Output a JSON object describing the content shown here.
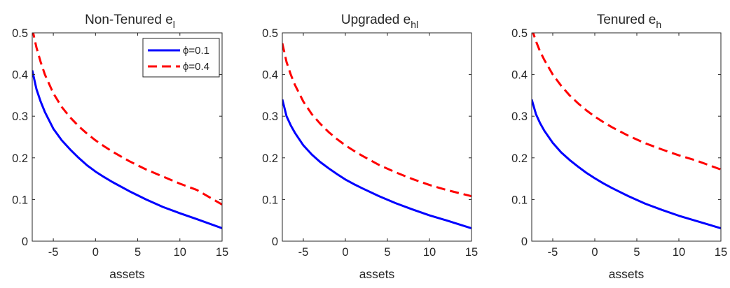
{
  "chart_data": [
    {
      "type": "line",
      "title": "Non-Tenured e",
      "title_sub": "l",
      "xlabel": "assets",
      "ylabel": "",
      "xlim": [
        -7.5,
        15
      ],
      "ylim": [
        0,
        0.5
      ],
      "xticks": [
        "-5",
        "0",
        "5",
        "10",
        "15"
      ],
      "yticks": [
        "0",
        "0.1",
        "0.2",
        "0.3",
        "0.4",
        "0.5"
      ],
      "grid": false,
      "legend": "top-right",
      "series": [
        {
          "name": "ϕ=0.1",
          "color": "#0000FF",
          "style": "solid",
          "x": [
            -7.5,
            -7,
            -6.5,
            -6,
            -5,
            -4,
            -3,
            -2,
            -1,
            0,
            1,
            2,
            4,
            6,
            8,
            10,
            12,
            15
          ],
          "y": [
            0.41,
            0.365,
            0.335,
            0.31,
            0.27,
            0.242,
            0.22,
            0.2,
            0.182,
            0.167,
            0.154,
            0.142,
            0.12,
            0.1,
            0.082,
            0.067,
            0.053,
            0.031
          ]
        },
        {
          "name": "ϕ=0.4",
          "color": "#FF0000",
          "style": "dashed",
          "x": [
            -7.5,
            -7,
            -6.5,
            -6,
            -5,
            -4,
            -3,
            -2,
            -1,
            0,
            1,
            2,
            4,
            6,
            8,
            10,
            12,
            15
          ],
          "y": [
            0.51,
            0.465,
            0.43,
            0.4,
            0.355,
            0.322,
            0.297,
            0.276,
            0.258,
            0.242,
            0.228,
            0.215,
            0.192,
            0.172,
            0.155,
            0.138,
            0.123,
            0.088
          ]
        }
      ]
    },
    {
      "type": "line",
      "title": "Upgraded e",
      "title_sub": "hl",
      "xlabel": "assets",
      "ylabel": "",
      "xlim": [
        -7.5,
        15
      ],
      "ylim": [
        0,
        0.5
      ],
      "xticks": [
        "-5",
        "0",
        "5",
        "10",
        "15"
      ],
      "yticks": [
        "0",
        "0.1",
        "0.2",
        "0.3",
        "0.4",
        "0.5"
      ],
      "grid": false,
      "series": [
        {
          "name": "ϕ=0.1",
          "color": "#0000FF",
          "style": "solid",
          "x": [
            -7.5,
            -7,
            -6.5,
            -6,
            -5,
            -4,
            -3,
            -2,
            -1,
            0,
            1,
            2,
            4,
            6,
            8,
            10,
            12,
            15
          ],
          "y": [
            0.34,
            0.3,
            0.278,
            0.26,
            0.23,
            0.208,
            0.19,
            0.175,
            0.161,
            0.148,
            0.137,
            0.127,
            0.108,
            0.091,
            0.076,
            0.062,
            0.05,
            0.031
          ]
        },
        {
          "name": "ϕ=0.4",
          "color": "#FF0000",
          "style": "dashed",
          "x": [
            -7.5,
            -7,
            -6.5,
            -6,
            -5,
            -4,
            -3,
            -2,
            -1,
            0,
            1,
            2,
            4,
            6,
            8,
            10,
            12,
            15
          ],
          "y": [
            0.475,
            0.43,
            0.4,
            0.375,
            0.335,
            0.305,
            0.282,
            0.262,
            0.245,
            0.23,
            0.217,
            0.205,
            0.183,
            0.165,
            0.149,
            0.135,
            0.123,
            0.108
          ]
        }
      ]
    },
    {
      "type": "line",
      "title": "Tenured e",
      "title_sub": "h",
      "xlabel": "assets",
      "ylabel": "",
      "xlim": [
        -7.5,
        15
      ],
      "ylim": [
        0,
        0.5
      ],
      "xticks": [
        "-5",
        "0",
        "5",
        "10",
        "15"
      ],
      "yticks": [
        "0",
        "0.1",
        "0.2",
        "0.3",
        "0.4",
        "0.5"
      ],
      "grid": false,
      "series": [
        {
          "name": "ϕ=0.1",
          "color": "#0000FF",
          "style": "solid",
          "x": [
            -7.5,
            -7,
            -6.5,
            -6,
            -5,
            -4,
            -3,
            -2,
            -1,
            0,
            1,
            2,
            4,
            6,
            8,
            10,
            12,
            15
          ],
          "y": [
            0.34,
            0.305,
            0.283,
            0.265,
            0.236,
            0.213,
            0.195,
            0.179,
            0.164,
            0.151,
            0.139,
            0.128,
            0.108,
            0.09,
            0.075,
            0.061,
            0.049,
            0.031
          ]
        },
        {
          "name": "ϕ=0.4",
          "color": "#FF0000",
          "style": "dashed",
          "x": [
            -7.5,
            -7,
            -6.5,
            -6,
            -5,
            -4,
            -3,
            -2,
            -1,
            0,
            1,
            2,
            4,
            6,
            8,
            10,
            12,
            15
          ],
          "y": [
            0.51,
            0.48,
            0.455,
            0.435,
            0.4,
            0.373,
            0.35,
            0.331,
            0.314,
            0.299,
            0.286,
            0.274,
            0.253,
            0.235,
            0.22,
            0.206,
            0.194,
            0.172
          ]
        }
      ]
    }
  ]
}
